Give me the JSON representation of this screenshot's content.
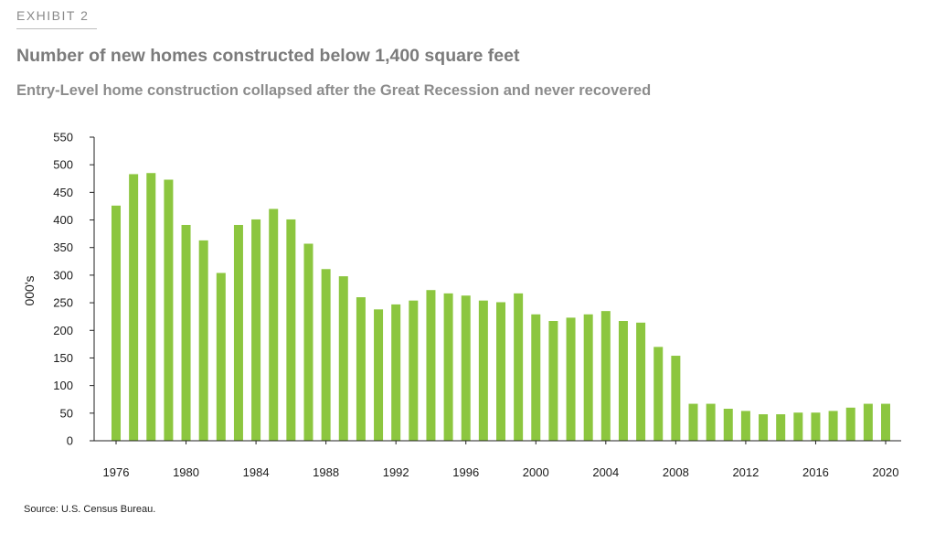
{
  "header": {
    "exhibit": "EXHIBIT 2"
  },
  "source": "Source: U.S. Census Bureau.",
  "colors": {
    "bar": "#8cc63f",
    "axis": "#222222",
    "exhibit": "#8a8a8a",
    "title": "#7b7b7b"
  },
  "chart_data": {
    "type": "bar",
    "title": "Number of new homes constructed below 1,400 square feet",
    "subtitle": "Entry-Level home construction collapsed after the Great Recession and never recovered",
    "xlabel": "",
    "ylabel": "000's",
    "ylim": [
      0,
      550
    ],
    "yticks": [
      0,
      50,
      100,
      150,
      200,
      250,
      300,
      350,
      400,
      450,
      500,
      550
    ],
    "xtick_labels": [
      "1976",
      "1980",
      "1984",
      "1988",
      "1992",
      "1996",
      "2000",
      "2004",
      "2008",
      "2012",
      "2016",
      "2020"
    ],
    "grid": false,
    "legend": "none",
    "categories": [
      1976,
      1977,
      1978,
      1979,
      1980,
      1981,
      1982,
      1983,
      1984,
      1985,
      1986,
      1987,
      1988,
      1989,
      1990,
      1991,
      1992,
      1993,
      1994,
      1995,
      1996,
      1997,
      1998,
      1999,
      2000,
      2001,
      2002,
      2003,
      2004,
      2005,
      2006,
      2007,
      2008,
      2009,
      2010,
      2011,
      2012,
      2013,
      2014,
      2015,
      2016,
      2017,
      2018,
      2019,
      2020
    ],
    "values": [
      426,
      483,
      485,
      473,
      391,
      363,
      304,
      391,
      401,
      420,
      401,
      357,
      311,
      298,
      260,
      238,
      247,
      254,
      273,
      267,
      263,
      254,
      251,
      267,
      229,
      217,
      223,
      229,
      235,
      217,
      214,
      170,
      154,
      67,
      67,
      58,
      54,
      48,
      48,
      51,
      51,
      54,
      60,
      67,
      67
    ]
  }
}
